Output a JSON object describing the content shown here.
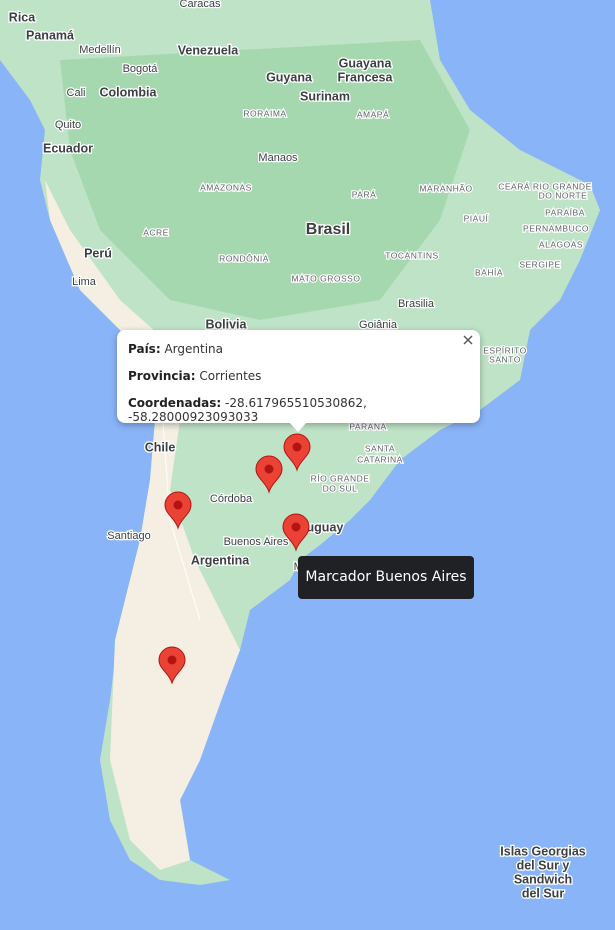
{
  "map": {
    "labels": [
      "Rica",
      "Caracas",
      "Panamá",
      "Medellín",
      "Bogotá",
      "Venezuela",
      "Guyana",
      "Guayana",
      "Francesa",
      "Surinam",
      "Cali",
      "Colombia",
      "RORAIMA",
      "AMAPÁ",
      "Quito",
      "Ecuador",
      "Manaos",
      "AMAZONAS",
      "PARÁ",
      "MARANHÃO",
      "CEARÁ RIO GRANDE",
      "DO NORTE",
      "PARAÍBA",
      "PIAUÍ",
      "PERNAMBUCO",
      "ACRE",
      "Brasil",
      "ALAGOAS",
      "Perú",
      "RONDÔNIA",
      "TOCANTINS",
      "SERGIPE",
      "Lima",
      "MATO GROSSO",
      "BAHÍA",
      "Brasilia",
      "Bolivia",
      "Goiânia",
      "ESPÍRITO",
      "SANTO",
      "Chile",
      "PARANÁ",
      "SANTA",
      "CATARINA",
      "RÍO GRANDE",
      "DO SUL",
      "Córdoba",
      "Uruguay",
      "Santiago",
      "Buenos Aires",
      "Argentina",
      "Montevideo",
      "Islas Georgias",
      "del Sur y",
      "Sandwich",
      "del Sur"
    ]
  },
  "info_window": {
    "fields": [
      {
        "label": "País:",
        "value": "Argentina"
      },
      {
        "label": "Provincia:",
        "value": "Corrientes"
      },
      {
        "label": "Coordenadas:",
        "value": "-28.617965510530862, -58.28000923093033"
      }
    ]
  },
  "tooltip": "Marcador Buenos Aires"
}
